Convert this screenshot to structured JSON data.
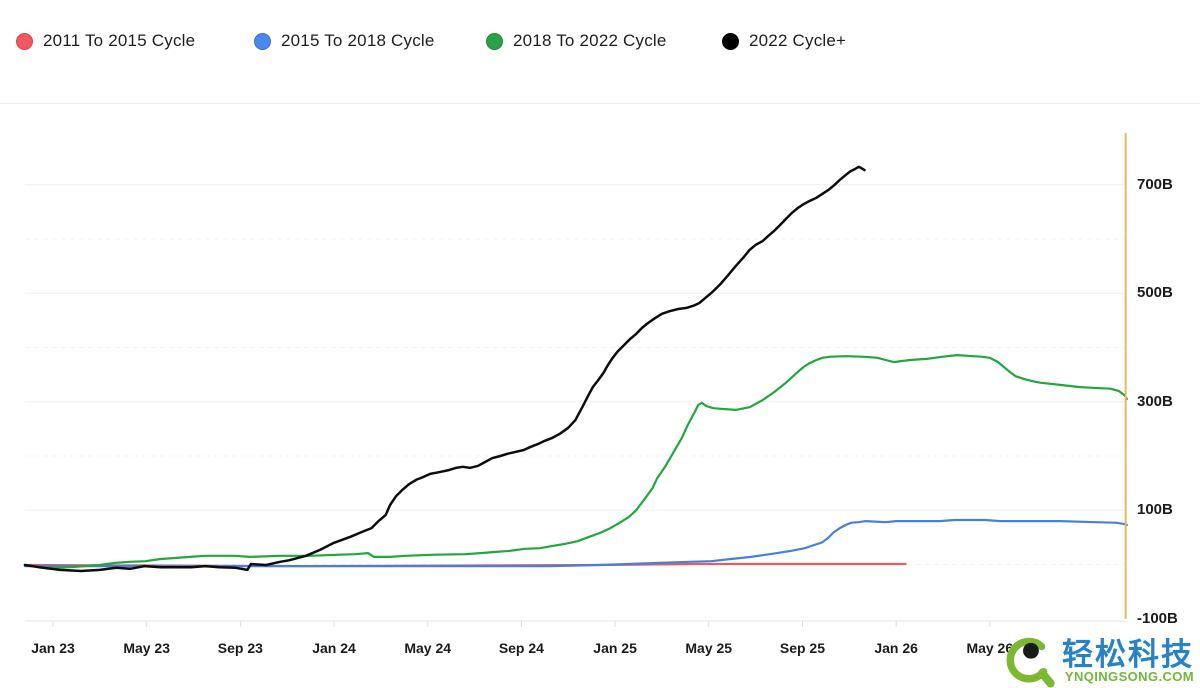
{
  "legend": {
    "items": [
      {
        "label": "2011 To 2015 Cycle",
        "dot_color": "#f2595f",
        "dot_border": "#d9464e"
      },
      {
        "label": "2015 To 2018 Cycle",
        "dot_color": "#4b87ee",
        "dot_border": "#3a71d6"
      },
      {
        "label": "2018 To 2022 Cycle",
        "dot_color": "#2aa147",
        "dot_border": "#1f8a39"
      },
      {
        "label": "2022 Cycle+",
        "dot_color": "#000000",
        "dot_border": "#000000"
      }
    ]
  },
  "watermark": {
    "brand": "轻松科技",
    "site": "YNQINGSONG.COM",
    "brand_color": "#2a82c6",
    "site_color": "#74b63c",
    "logo_color": "#7cb832",
    "pupil_color": "#1a1a1a"
  },
  "chart_data": {
    "type": "line",
    "title": "",
    "xlabel": "",
    "ylabel": "",
    "x_unit": "months since Jan 2023",
    "y_unit": "billions (B)",
    "grid": true,
    "legend_position": "top-left",
    "x_ticks": [
      {
        "m": 0,
        "label": "Jan 23"
      },
      {
        "m": 4,
        "label": "May 23"
      },
      {
        "m": 8,
        "label": "Sep 23"
      },
      {
        "m": 12,
        "label": "Jan 24"
      },
      {
        "m": 16,
        "label": "May 24"
      },
      {
        "m": 20,
        "label": "Sep 24"
      },
      {
        "m": 24,
        "label": "Jan 25"
      },
      {
        "m": 28,
        "label": "May 25"
      },
      {
        "m": 32,
        "label": "Sep 25"
      },
      {
        "m": 36,
        "label": "Jan 26"
      },
      {
        "m": 40,
        "label": "May 26"
      }
    ],
    "y_ticks": [
      {
        "v": 700,
        "label": "700B"
      },
      {
        "v": 500,
        "label": "500B"
      },
      {
        "v": 300,
        "label": "300B"
      },
      {
        "v": 100,
        "label": "100B"
      },
      {
        "v": -100,
        "label": "-100B"
      }
    ],
    "y_grid_major": [
      700,
      500,
      300,
      100
    ],
    "y_grid_minor": [
      600,
      400,
      200,
      0
    ],
    "xlim": [
      -1.2,
      45.9
    ],
    "ylim": [
      -130,
      800
    ],
    "now_line": {
      "x_m": 45.8,
      "color": "#e3bc5f"
    },
    "series": [
      {
        "name": "2011 To 2015 Cycle",
        "color": "#e06060",
        "width": 2.2,
        "points": [
          [
            -1.2,
            -1
          ],
          [
            10.5,
            -3
          ],
          [
            23.3,
            -1
          ],
          [
            27.6,
            1
          ],
          [
            32,
            1
          ],
          [
            36.4,
            1
          ]
        ]
      },
      {
        "name": "2015 To 2018 Cycle",
        "color": "#4a7fd9",
        "width": 2.2,
        "points": [
          [
            -1.2,
            -3
          ],
          [
            6.3,
            -3
          ],
          [
            14.8,
            -3
          ],
          [
            21.2,
            -3
          ],
          [
            23.3,
            -1
          ],
          [
            24.6,
            1
          ],
          [
            25.9,
            3
          ],
          [
            27.2,
            5
          ],
          [
            28.1,
            6
          ],
          [
            28.9,
            10
          ],
          [
            29.8,
            14
          ],
          [
            30.6,
            19
          ],
          [
            31.5,
            25
          ],
          [
            32.1,
            30
          ],
          [
            32.5,
            36
          ],
          [
            32.85,
            41
          ],
          [
            33.1,
            49
          ],
          [
            33.35,
            60
          ],
          [
            33.6,
            67
          ],
          [
            33.85,
            73
          ],
          [
            34.1,
            77
          ],
          [
            34.4,
            78
          ],
          [
            34.7,
            80
          ],
          [
            35.55,
            78
          ],
          [
            36,
            80
          ],
          [
            37.85,
            80
          ],
          [
            38.5,
            82
          ],
          [
            39.8,
            82
          ],
          [
            40.45,
            80
          ],
          [
            43,
            80
          ],
          [
            44.5,
            78
          ],
          [
            45.35,
            77
          ],
          [
            45.7,
            75
          ],
          [
            45.85,
            73
          ]
        ]
      },
      {
        "name": "2018 To 2022 Cycle",
        "color": "#21a73e",
        "width": 2.2,
        "points": [
          [
            -1.2,
            -1
          ],
          [
            -0.55,
            -5
          ],
          [
            0.1,
            -6
          ],
          [
            0.75,
            -5
          ],
          [
            1.35,
            -3
          ],
          [
            2,
            -1
          ],
          [
            2.65,
            3
          ],
          [
            3.3,
            5
          ],
          [
            3.95,
            6
          ],
          [
            4.55,
            10
          ],
          [
            5.2,
            12
          ],
          [
            5.85,
            14
          ],
          [
            6.5,
            16
          ],
          [
            7.75,
            16
          ],
          [
            8.4,
            14
          ],
          [
            9.7,
            16
          ],
          [
            10.95,
            16
          ],
          [
            12.25,
            18
          ],
          [
            12.9,
            19
          ],
          [
            13.45,
            21
          ],
          [
            13.7,
            14
          ],
          [
            14.4,
            14
          ],
          [
            15.05,
            16
          ],
          [
            16.3,
            18
          ],
          [
            17.6,
            19
          ],
          [
            18.25,
            21
          ],
          [
            18.85,
            23
          ],
          [
            19.5,
            25
          ],
          [
            20.15,
            29
          ],
          [
            20.8,
            30
          ],
          [
            21.3,
            34
          ],
          [
            21.85,
            38
          ],
          [
            22.4,
            43
          ],
          [
            22.9,
            51
          ],
          [
            23.35,
            58
          ],
          [
            23.8,
            67
          ],
          [
            24.2,
            77
          ],
          [
            24.6,
            88
          ],
          [
            24.9,
            100
          ],
          [
            25.3,
            123
          ],
          [
            25.6,
            141
          ],
          [
            25.8,
            159
          ],
          [
            26.1,
            178
          ],
          [
            26.35,
            196
          ],
          [
            26.6,
            215
          ],
          [
            26.85,
            233
          ],
          [
            27.1,
            257
          ],
          [
            27.4,
            281
          ],
          [
            27.55,
            294
          ],
          [
            27.7,
            298
          ],
          [
            27.9,
            292
          ],
          [
            28.2,
            288
          ],
          [
            28.5,
            287
          ],
          [
            29.15,
            285
          ],
          [
            29.75,
            290
          ],
          [
            30.3,
            303
          ],
          [
            30.8,
            318
          ],
          [
            31.3,
            335
          ],
          [
            31.8,
            355
          ],
          [
            32.05,
            364
          ],
          [
            32.3,
            371
          ],
          [
            32.6,
            377
          ],
          [
            32.85,
            381
          ],
          [
            33.2,
            383
          ],
          [
            33.85,
            384
          ],
          [
            34.55,
            383
          ],
          [
            35.2,
            381
          ],
          [
            35.55,
            377
          ],
          [
            35.9,
            373
          ],
          [
            36.25,
            375
          ],
          [
            36.6,
            377
          ],
          [
            37.3,
            379
          ],
          [
            38,
            383
          ],
          [
            38.6,
            386
          ],
          [
            39.3,
            384
          ],
          [
            39.65,
            383
          ],
          [
            40,
            381
          ],
          [
            40.35,
            373
          ],
          [
            40.6,
            364
          ],
          [
            40.85,
            355
          ],
          [
            41.1,
            347
          ],
          [
            41.45,
            342
          ],
          [
            41.8,
            338
          ],
          [
            42.15,
            335
          ],
          [
            43,
            331
          ],
          [
            43.85,
            327
          ],
          [
            44.7,
            325
          ],
          [
            45.15,
            324
          ],
          [
            45.5,
            320
          ],
          [
            45.75,
            312
          ],
          [
            45.85,
            305
          ]
        ]
      },
      {
        "name": "2022 Cycle+",
        "color": "#0d0d0d",
        "width": 2.5,
        "points": [
          [
            -1.2,
            -1
          ],
          [
            -0.6,
            -5
          ],
          [
            0.3,
            -10
          ],
          [
            1.2,
            -12
          ],
          [
            2,
            -10
          ],
          [
            2.7,
            -6
          ],
          [
            3.3,
            -8
          ],
          [
            3.9,
            -3
          ],
          [
            4.6,
            -5
          ],
          [
            5.9,
            -5
          ],
          [
            6.5,
            -3
          ],
          [
            7.1,
            -5
          ],
          [
            7.8,
            -6
          ],
          [
            8.3,
            -10
          ],
          [
            8.45,
            1
          ],
          [
            9.1,
            -1
          ],
          [
            9.7,
            5
          ],
          [
            10.1,
            8
          ],
          [
            10.8,
            16
          ],
          [
            11.4,
            27
          ],
          [
            12,
            40
          ],
          [
            12.7,
            51
          ],
          [
            13.2,
            60
          ],
          [
            13.6,
            67
          ],
          [
            13.9,
            80
          ],
          [
            14.2,
            91
          ],
          [
            14.4,
            110
          ],
          [
            14.65,
            126
          ],
          [
            14.9,
            137
          ],
          [
            15.2,
            148
          ],
          [
            15.5,
            156
          ],
          [
            15.8,
            161
          ],
          [
            16.1,
            167
          ],
          [
            16.45,
            170
          ],
          [
            16.9,
            174
          ],
          [
            17.2,
            178
          ],
          [
            17.5,
            180
          ],
          [
            17.8,
            178
          ],
          [
            18.15,
            182
          ],
          [
            18.45,
            189
          ],
          [
            18.75,
            196
          ],
          [
            19.1,
            200
          ],
          [
            19.4,
            204
          ],
          [
            19.7,
            207
          ],
          [
            20.1,
            211
          ],
          [
            20.4,
            217
          ],
          [
            20.7,
            222
          ],
          [
            21,
            228
          ],
          [
            21.3,
            233
          ],
          [
            21.65,
            241
          ],
          [
            22,
            252
          ],
          [
            22.3,
            266
          ],
          [
            22.6,
            290
          ],
          [
            22.85,
            311
          ],
          [
            23.05,
            327
          ],
          [
            23.25,
            338
          ],
          [
            23.5,
            353
          ],
          [
            23.7,
            368
          ],
          [
            23.9,
            381
          ],
          [
            24.1,
            392
          ],
          [
            24.4,
            405
          ],
          [
            24.65,
            416
          ],
          [
            24.9,
            425
          ],
          [
            25.15,
            436
          ],
          [
            25.4,
            445
          ],
          [
            25.7,
            454
          ],
          [
            26,
            462
          ],
          [
            26.35,
            467
          ],
          [
            26.7,
            471
          ],
          [
            27.05,
            473
          ],
          [
            27.35,
            477
          ],
          [
            27.6,
            482
          ],
          [
            27.85,
            491
          ],
          [
            28.15,
            502
          ],
          [
            28.5,
            517
          ],
          [
            28.8,
            532
          ],
          [
            29.15,
            550
          ],
          [
            29.5,
            567
          ],
          [
            29.75,
            580
          ],
          [
            30,
            589
          ],
          [
            30.3,
            596
          ],
          [
            30.55,
            606
          ],
          [
            30.8,
            615
          ],
          [
            31.05,
            626
          ],
          [
            31.3,
            637
          ],
          [
            31.55,
            648
          ],
          [
            31.8,
            657
          ],
          [
            32.05,
            664
          ],
          [
            32.3,
            670
          ],
          [
            32.6,
            676
          ],
          [
            32.85,
            683
          ],
          [
            33.1,
            690
          ],
          [
            33.35,
            699
          ],
          [
            33.6,
            709
          ],
          [
            33.85,
            718
          ],
          [
            34.05,
            725
          ],
          [
            34.25,
            729
          ],
          [
            34.4,
            733
          ],
          [
            34.5,
            731
          ],
          [
            34.65,
            727
          ]
        ]
      }
    ]
  }
}
